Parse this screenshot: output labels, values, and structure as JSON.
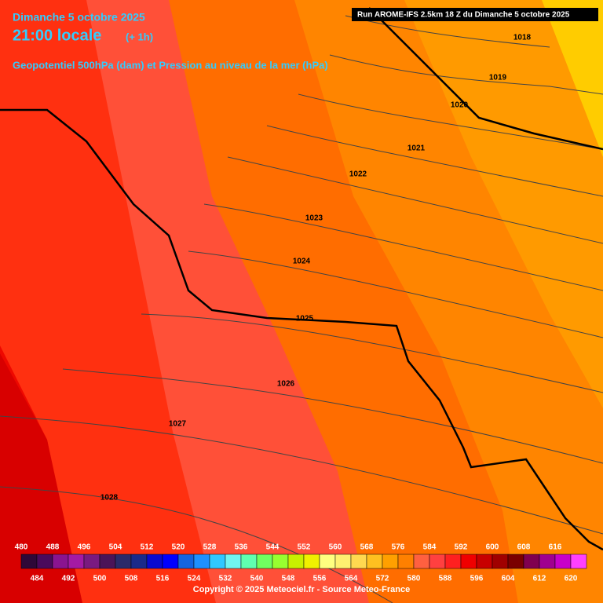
{
  "header": {
    "date": "Dimanche 5 octobre 2025",
    "time": "21:00 locale",
    "offset": "(+ 1h)",
    "subtitle": "Geopotentiel 500hPa (dam) et Pression au niveau de la mer (hPa)"
  },
  "run": "Run AROME-IFS 2.5km 18 Z du Dimanche 5 octobre 2025",
  "isobars": [
    1018,
    1019,
    1020,
    1021,
    1022,
    1023,
    1024,
    1025,
    1026,
    1027,
    1028
  ],
  "scale": {
    "values": [
      480,
      484,
      488,
      492,
      496,
      500,
      504,
      508,
      512,
      516,
      520,
      524,
      528,
      532,
      536,
      540,
      544,
      548,
      552,
      556,
      560,
      564,
      568,
      572,
      576,
      580,
      584,
      588,
      592,
      596,
      600,
      604,
      608,
      612,
      616,
      620
    ],
    "colors": [
      "#2e0838",
      "#4a0a5c",
      "#8a1490",
      "#a41aa4",
      "#7a1a80",
      "#4a1458",
      "#2a2a6a",
      "#1a2a8a",
      "#0a0ad0",
      "#0000ff",
      "#1464e0",
      "#1e90ff",
      "#30c8ff",
      "#70f4f0",
      "#60ffb0",
      "#70ff60",
      "#98ff30",
      "#c8f000",
      "#f0f000",
      "#ffff80",
      "#fff070",
      "#ffd850",
      "#ffc020",
      "#ffa000",
      "#ff8000",
      "#ff6040",
      "#ff4040",
      "#ff2020",
      "#f00000",
      "#c80000",
      "#a00000",
      "#7a0000",
      "#800050",
      "#a00090",
      "#c800c8",
      "#ff40ff"
    ]
  },
  "copyright": "Copyright © 2025 Meteociel.fr - Source Meteo-France"
}
